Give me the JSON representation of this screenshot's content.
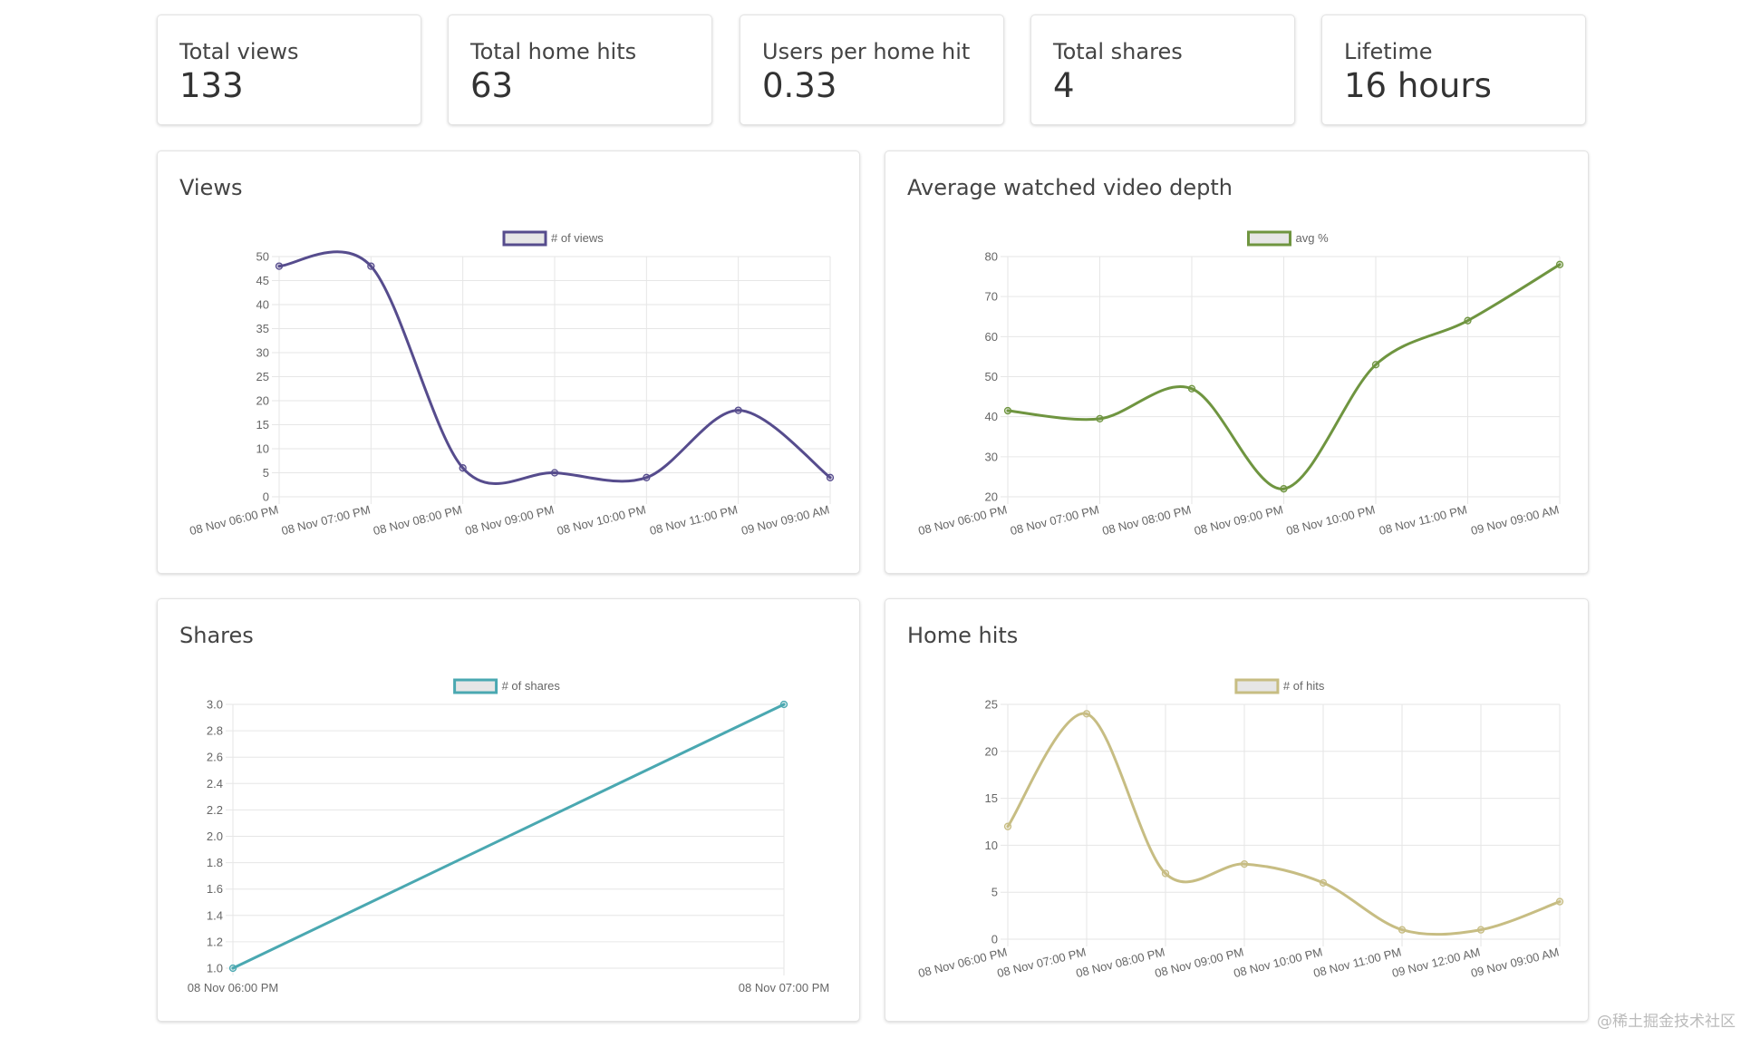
{
  "stats": [
    {
      "label": "Total views",
      "value": "133"
    },
    {
      "label": "Total home hits",
      "value": "63"
    },
    {
      "label": "Users per home hit",
      "value": "0.33"
    },
    {
      "label": "Total shares",
      "value": "4"
    },
    {
      "label": "Lifetime",
      "value": "16 hours"
    }
  ],
  "charts": {
    "views": {
      "title": "Views"
    },
    "depth": {
      "title": "Average watched video depth"
    },
    "shares": {
      "title": "Shares"
    },
    "hits": {
      "title": "Home hits"
    }
  },
  "watermark": "@稀土掘金技术社区",
  "chart_data": [
    {
      "type": "line",
      "title": "Views",
      "x": [
        "08 Nov 06:00 PM",
        "08 Nov 07:00 PM",
        "08 Nov 08:00 PM",
        "08 Nov 09:00 PM",
        "08 Nov 10:00 PM",
        "08 Nov 11:00 PM",
        "09 Nov 09:00 AM"
      ],
      "series": [
        {
          "name": "# of views",
          "values": [
            48,
            48,
            6,
            5,
            4,
            18,
            4
          ],
          "color": "#564c8d"
        }
      ],
      "ylim": [
        0,
        50
      ],
      "yticks": [
        "0",
        "5",
        "10",
        "15",
        "20",
        "25",
        "30",
        "35",
        "40",
        "45",
        "50"
      ],
      "grid": true,
      "legend": "top-center"
    },
    {
      "type": "line",
      "title": "Average watched video depth",
      "x": [
        "08 Nov 06:00 PM",
        "08 Nov 07:00 PM",
        "08 Nov 08:00 PM",
        "08 Nov 09:00 PM",
        "08 Nov 10:00 PM",
        "08 Nov 11:00 PM",
        "09 Nov 09:00 AM"
      ],
      "series": [
        {
          "name": "avg %",
          "values": [
            41.5,
            39.5,
            47,
            22,
            53,
            64,
            78
          ],
          "color": "#6f9540"
        }
      ],
      "ylim": [
        20,
        80
      ],
      "yticks": [
        "20",
        "30",
        "40",
        "50",
        "60",
        "70",
        "80"
      ],
      "grid": true,
      "legend": "top-center"
    },
    {
      "type": "line",
      "title": "Shares",
      "x": [
        "08 Nov 06:00 PM",
        "08 Nov 07:00 PM"
      ],
      "series": [
        {
          "name": "# of shares",
          "values": [
            1,
            3
          ],
          "color": "#4aa8b1"
        }
      ],
      "ylim": [
        1,
        3
      ],
      "yticks": [
        "1.0",
        "1.2",
        "1.4",
        "1.6",
        "1.8",
        "2.0",
        "2.2",
        "2.4",
        "2.6",
        "2.8",
        "3.0"
      ],
      "grid": true,
      "legend": "top-center"
    },
    {
      "type": "line",
      "title": "Home hits",
      "x": [
        "08 Nov 06:00 PM",
        "08 Nov 07:00 PM",
        "08 Nov 08:00 PM",
        "08 Nov 09:00 PM",
        "08 Nov 10:00 PM",
        "08 Nov 11:00 PM",
        "09 Nov 12:00 AM",
        "09 Nov 09:00 AM"
      ],
      "series": [
        {
          "name": "# of hits",
          "values": [
            12,
            24,
            7,
            8,
            6,
            1,
            1,
            4
          ],
          "color": "#c7bd83"
        }
      ],
      "ylim": [
        0,
        25
      ],
      "yticks": [
        "0",
        "5",
        "10",
        "15",
        "20",
        "25"
      ],
      "grid": true,
      "legend": "top-center"
    }
  ]
}
